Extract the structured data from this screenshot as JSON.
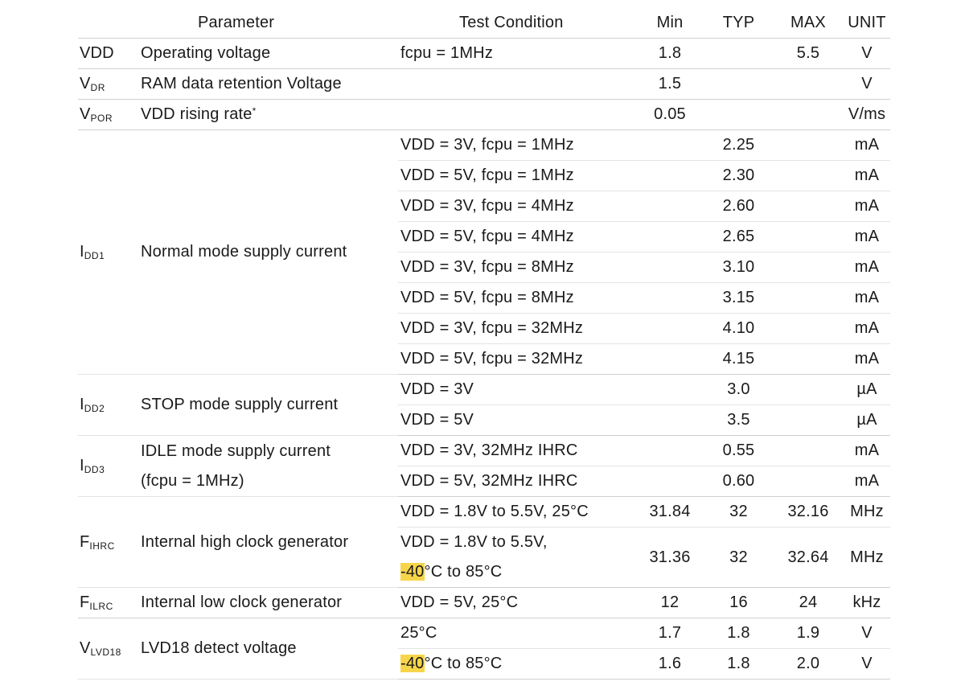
{
  "headers": {
    "parameter": "Parameter",
    "condition": "Test Condition",
    "min": "Min",
    "typ": "TYP",
    "max": "MAX",
    "unit": "UNIT"
  },
  "rows": {
    "vdd": {
      "symbol": "VDD",
      "param": "Operating voltage",
      "cond": "fcpu = 1MHz",
      "min": "1.8",
      "max": "5.5",
      "unit": "V"
    },
    "vdr": {
      "symbol": "V",
      "sub": "DR",
      "param": "RAM data retention Voltage",
      "min": "1.5",
      "unit": "V"
    },
    "vpor": {
      "symbol": "V",
      "sub": "POR",
      "param": "VDD rising rate",
      "sup": "*",
      "min": "0.05",
      "unit": "V/ms"
    },
    "idd1": {
      "symbol": "I",
      "sub": "DD1",
      "param": "Normal mode supply current",
      "items": [
        {
          "cond": "VDD = 3V, fcpu = 1MHz",
          "typ": "2.25",
          "unit": "mA"
        },
        {
          "cond": "VDD = 5V, fcpu = 1MHz",
          "typ": "2.30",
          "unit": "mA"
        },
        {
          "cond": "VDD = 3V, fcpu = 4MHz",
          "typ": "2.60",
          "unit": "mA"
        },
        {
          "cond": "VDD = 5V, fcpu = 4MHz",
          "typ": "2.65",
          "unit": "mA"
        },
        {
          "cond": "VDD = 3V, fcpu = 8MHz",
          "typ": "3.10",
          "unit": "mA"
        },
        {
          "cond": "VDD = 5V, fcpu = 8MHz",
          "typ": "3.15",
          "unit": "mA"
        },
        {
          "cond": "VDD = 3V, fcpu = 32MHz",
          "typ": "4.10",
          "unit": "mA"
        },
        {
          "cond": "VDD = 5V, fcpu = 32MHz",
          "typ": "4.15",
          "unit": "mA"
        }
      ]
    },
    "idd2": {
      "symbol": "I",
      "sub": "DD2",
      "param": "STOP mode supply current",
      "items": [
        {
          "cond": "VDD = 3V",
          "typ": "3.0",
          "unit": "µA"
        },
        {
          "cond": "VDD = 5V",
          "typ": "3.5",
          "unit": "µA"
        }
      ]
    },
    "idd3": {
      "symbol": "I",
      "sub": "DD3",
      "param": "IDLE mode supply current",
      "param2": "(fcpu = 1MHz)",
      "items": [
        {
          "cond": "VDD = 3V, 32MHz IHRC",
          "typ": "0.55",
          "unit": "mA"
        },
        {
          "cond": "VDD = 5V, 32MHz IHRC",
          "typ": "0.60",
          "unit": "mA"
        }
      ]
    },
    "fihrc": {
      "symbol": "F",
      "sub": "IHRC",
      "param": "Internal high clock generator",
      "items": [
        {
          "cond": "VDD = 1.8V to 5.5V, 25°C",
          "min": "31.84",
          "typ": "32",
          "max": "32.16",
          "unit": "MHz"
        },
        {
          "cond": "VDD = 1.8V to 5.5V,",
          "cond2_hl": "-40",
          "cond2_rest": "°C to 85°C",
          "min": "31.36",
          "typ": "32",
          "max": "32.64",
          "unit": "MHz"
        }
      ]
    },
    "filrc": {
      "symbol": "F",
      "sub": "ILRC",
      "param": "Internal low clock generator",
      "cond": "VDD = 5V, 25°C",
      "min": "12",
      "typ": "16",
      "max": "24",
      "unit": "kHz"
    },
    "vlvd18": {
      "symbol": "V",
      "sub": "LVD18",
      "param": "LVD18 detect voltage",
      "items": [
        {
          "cond": "25°C",
          "min": "1.7",
          "typ": "1.8",
          "max": "1.9",
          "unit": "V"
        },
        {
          "cond_hl": "-40",
          "cond_rest": "°C to 85°C",
          "min": "1.6",
          "typ": "1.8",
          "max": "2.0",
          "unit": "V"
        }
      ]
    }
  },
  "colors": {
    "highlight": "#f7d54a",
    "rule": "#cfcfcf"
  }
}
